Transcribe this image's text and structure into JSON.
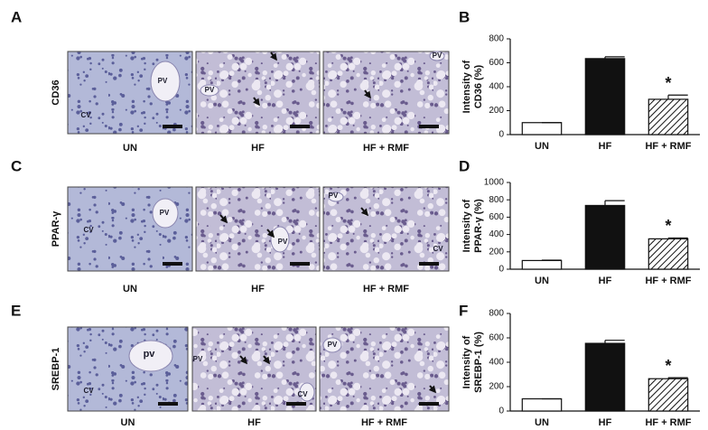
{
  "image_rows": [
    {
      "label": "A",
      "marker": "CD36",
      "images": [
        {
          "caption": "UN",
          "tags": [
            "PV",
            "CV"
          ]
        },
        {
          "caption": "HF",
          "tags": [
            "PV"
          ]
        },
        {
          "caption": "HF + RMF",
          "tags": [
            "PV"
          ]
        }
      ]
    },
    {
      "label": "C",
      "marker": "PPAR-γ",
      "images": [
        {
          "caption": "UN",
          "tags": [
            "PV",
            "CV"
          ]
        },
        {
          "caption": "HF",
          "tags": [
            "PV"
          ]
        },
        {
          "caption": "HF + RMF",
          "tags": [
            "PV",
            "CV"
          ]
        }
      ]
    },
    {
      "label": "E",
      "marker": "SREBP-1",
      "images": [
        {
          "caption": "UN",
          "tags": [
            "pv",
            "CV"
          ]
        },
        {
          "caption": "HF",
          "tags": [
            "PV",
            "CV"
          ]
        },
        {
          "caption": "HF + RMF",
          "tags": [
            "PV"
          ]
        }
      ]
    }
  ],
  "chart_data": [
    {
      "type": "bar",
      "panel_label": "B",
      "ylabel": [
        "Intensity of",
        "CD36 (%)"
      ],
      "categories": [
        "UN",
        "HF",
        "HF + RMF"
      ],
      "values": [
        100,
        635,
        295
      ],
      "errors": [
        0,
        15,
        35
      ],
      "colors": [
        "#ffffff",
        "#111111",
        "#ffffff"
      ],
      "hatch": [
        false,
        false,
        true
      ],
      "ylim": [
        0,
        800
      ],
      "yticks": [
        0,
        200,
        400,
        600,
        800
      ],
      "annotation": "*"
    },
    {
      "type": "bar",
      "panel_label": "D",
      "ylabel": [
        "Intensity of",
        "PPAR-γ (%)"
      ],
      "categories": [
        "UN",
        "HF",
        "HF + RMF"
      ],
      "values": [
        100,
        735,
        350
      ],
      "errors": [
        5,
        55,
        10
      ],
      "colors": [
        "#ffffff",
        "#111111",
        "#ffffff"
      ],
      "hatch": [
        false,
        false,
        true
      ],
      "ylim": [
        0,
        1000
      ],
      "yticks": [
        0,
        200,
        400,
        600,
        800,
        1000
      ],
      "annotation": "*"
    },
    {
      "type": "bar",
      "panel_label": "F",
      "ylabel": [
        "Intensity of",
        "SREBP-1 (%)"
      ],
      "categories": [
        "UN",
        "HF",
        "HF + RMF"
      ],
      "values": [
        100,
        555,
        265
      ],
      "errors": [
        0,
        25,
        8
      ],
      "colors": [
        "#ffffff",
        "#111111",
        "#ffffff"
      ],
      "hatch": [
        false,
        false,
        true
      ],
      "ylim": [
        0,
        800
      ],
      "yticks": [
        0,
        200,
        400,
        600,
        800
      ],
      "annotation": "*"
    }
  ]
}
